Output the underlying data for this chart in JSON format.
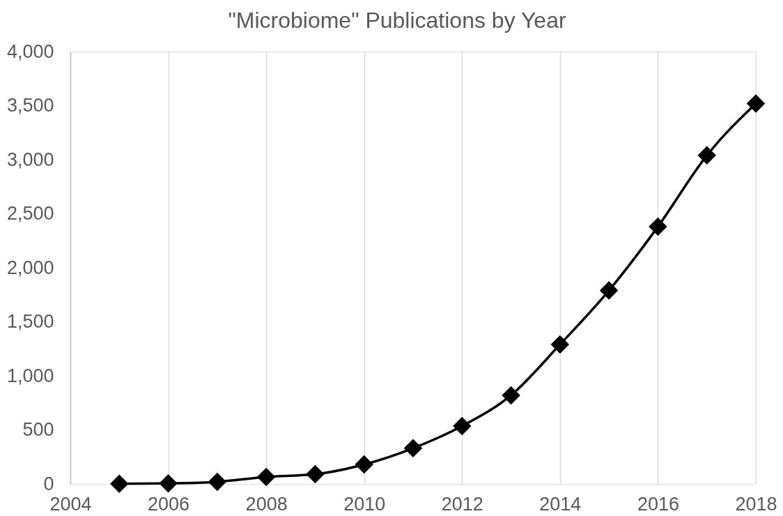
{
  "chart_data": {
    "type": "line",
    "title": "\"Microbiome\" Publications by Year",
    "x": [
      2005,
      2006,
      2007,
      2008,
      2009,
      2010,
      2011,
      2012,
      2013,
      2014,
      2015,
      2016,
      2017,
      2018
    ],
    "series": [
      {
        "color": "#000000",
        "values": [
          2,
          5,
          20,
          65,
          90,
          180,
          330,
          535,
          820,
          1290,
          1790,
          2380,
          3040,
          3520
        ]
      }
    ],
    "xlim": [
      2004,
      2018
    ],
    "xticks": [
      2004,
      2006,
      2008,
      2010,
      2012,
      2014,
      2016,
      2018
    ],
    "ylim": [
      0,
      4000
    ],
    "yticks": [
      0,
      500,
      {
        "value": 1000,
        "label": "1,000"
      },
      {
        "value": 1500,
        "label": "1,500"
      },
      {
        "value": 2000,
        "label": "2,000"
      },
      {
        "value": 2500,
        "label": "2,500"
      },
      {
        "value": 3000,
        "label": "3,000"
      },
      {
        "value": 3500,
        "label": "3,500"
      },
      {
        "value": 4000,
        "label": "4,000"
      }
    ],
    "grid": "x",
    "marker": "diamond",
    "line_style": "solid"
  }
}
